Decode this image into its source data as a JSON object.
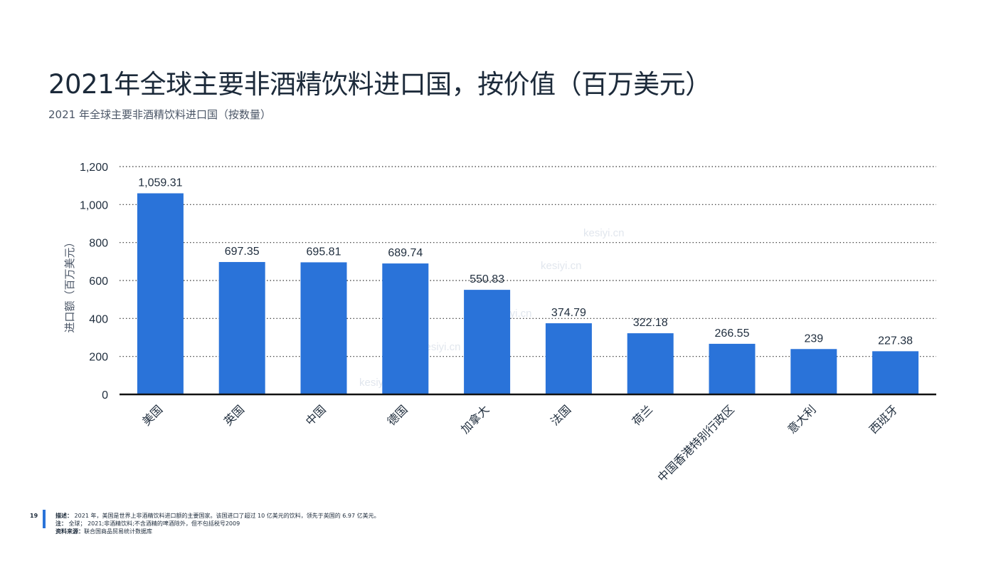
{
  "title": "2021年全球主要非酒精饮料进口国，按价值（百万美元）",
  "subtitle": "2021 年全球主要非酒精饮料进口国（按数量）",
  "footer": {
    "page_number": "19",
    "description_label": "描述：",
    "description": "2021 年，美国是世界上非酒精饮料进口额的主要国家。该国进口了超过 10 亿美元的饮料，领先于英国的 6.97 亿美元。",
    "note_label": "注：",
    "note": "全球； 2021;非酒精饮料;不含酒精的啤酒除外，但不包括税号2009",
    "source_label": "资料来源：",
    "source": "联合国商品贸易统计数据库"
  },
  "watermark": "kesiyi.cn",
  "colors": {
    "bar": "#2a73d9",
    "axis": "#111111",
    "grid": "#333333",
    "text": "#1f2d3d"
  },
  "chart_data": {
    "type": "bar",
    "ylabel": "进口额（百万美元）",
    "ylim": [
      0,
      1200
    ],
    "yticks": [
      0,
      200,
      400,
      600,
      800,
      1000,
      1200
    ],
    "ytick_labels": [
      "0",
      "200",
      "400",
      "600",
      "800",
      "1,000",
      "1,200"
    ],
    "grid": "dotted-horizontal",
    "categories": [
      "美国",
      "英国",
      "中国",
      "德国",
      "加拿大",
      "法国",
      "荷兰",
      "中国香港特别行政区",
      "意大利",
      "西班牙"
    ],
    "values": [
      1059.31,
      697.35,
      695.81,
      689.74,
      550.83,
      374.79,
      322.18,
      266.55,
      239,
      227.38
    ],
    "value_labels": [
      "1,059.31",
      "697.35",
      "695.81",
      "689.74",
      "550.83",
      "374.79",
      "322.18",
      "266.55",
      "239",
      "227.38"
    ]
  }
}
